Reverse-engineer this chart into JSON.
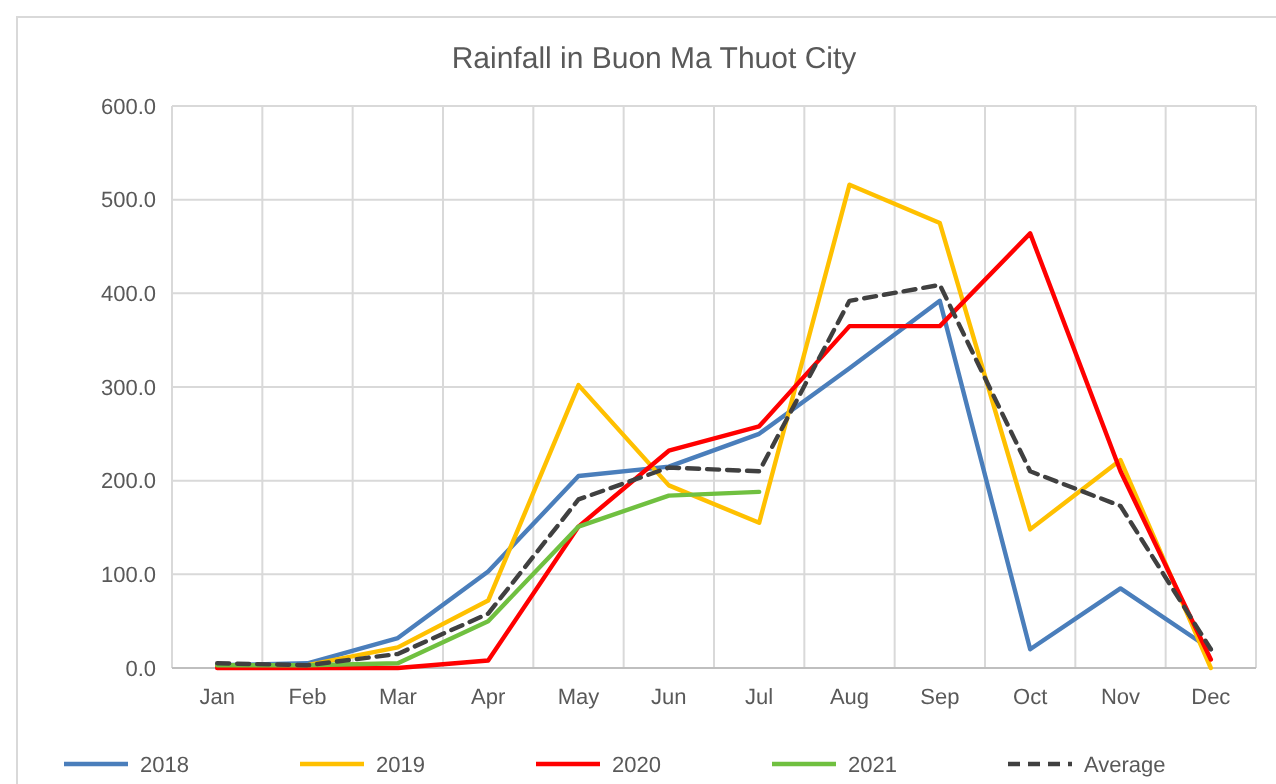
{
  "chart_data": {
    "type": "line",
    "title": "Rainfall in Buon Ma Thuot City",
    "categories": [
      "Jan",
      "Feb",
      "Mar",
      "Apr",
      "May",
      "Jun",
      "Jul",
      "Aug",
      "Sep",
      "Oct",
      "Nov",
      "Dec"
    ],
    "series": [
      {
        "name": "2018",
        "color": "#4a7ebb",
        "values": [
          3,
          5,
          32,
          103,
          205,
          215,
          250,
          320,
          392,
          20,
          85,
          20
        ]
      },
      {
        "name": "2019",
        "color": "#ffc000",
        "values": [
          2,
          3,
          22,
          72,
          302,
          195,
          155,
          516,
          475,
          148,
          222,
          0
        ]
      },
      {
        "name": "2020",
        "color": "#ff0000",
        "values": [
          0,
          0,
          0,
          8,
          151,
          232,
          258,
          365,
          365,
          464,
          210,
          9
        ]
      },
      {
        "name": "2021",
        "color": "#70c040",
        "values": [
          3,
          3,
          5,
          50,
          151,
          184,
          188,
          null,
          null,
          null,
          null,
          null
        ]
      },
      {
        "name": "Average",
        "color": "#404040",
        "line_style": "dashed",
        "values": [
          5,
          3,
          15,
          58,
          180,
          214,
          210,
          392,
          409,
          210,
          173,
          20
        ]
      }
    ],
    "ylim": [
      0,
      600
    ],
    "yticks": [
      {
        "value": 0,
        "label": "0.0"
      },
      {
        "value": 100,
        "label": "100.0"
      },
      {
        "value": 200,
        "label": "200.0"
      },
      {
        "value": 300,
        "label": "300.0"
      },
      {
        "value": 400,
        "label": "400.0"
      },
      {
        "value": 500,
        "label": "500.0"
      },
      {
        "value": 600,
        "label": "600.0"
      }
    ],
    "grid": true,
    "legend": "bottom",
    "line_style": "solid",
    "marker": "none"
  }
}
